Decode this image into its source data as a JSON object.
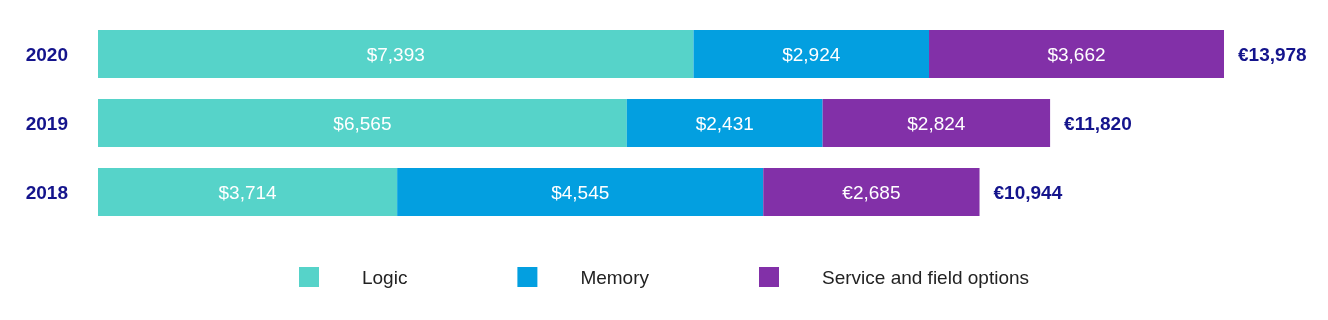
{
  "chart_data": {
    "type": "bar",
    "orientation": "horizontal",
    "stacked": true,
    "categories": [
      "2020",
      "2019",
      "2018"
    ],
    "series": [
      {
        "name": "Logic",
        "color": "#56d3c9",
        "values": [
          7393,
          6565,
          3714
        ],
        "value_labels": [
          "$7,393",
          "$6,565",
          "$3,714"
        ]
      },
      {
        "name": "Memory",
        "color": "#039fe0",
        "values": [
          2924,
          2431,
          4545
        ],
        "value_labels": [
          "$2,924",
          "$2,431",
          "$4,545"
        ]
      },
      {
        "name": "Service and field options",
        "color": "#8230a8",
        "values": [
          3662,
          2824,
          2685
        ],
        "value_labels": [
          "$3,662",
          "$2,824",
          "€2,685"
        ]
      }
    ],
    "totals": [
      "€13,978",
      "€11,820",
      "€10,944"
    ],
    "tick_labels": "y",
    "grid": false,
    "legend": "bottom"
  }
}
